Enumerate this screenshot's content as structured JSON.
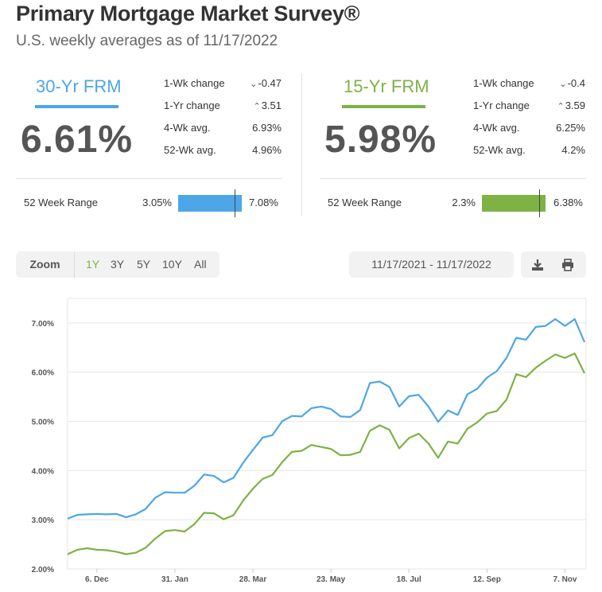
{
  "header": {
    "title": "Primary Mortgage Market Survey®",
    "subtitle": "U.S. weekly averages as of 11/17/2022"
  },
  "frm30": {
    "label": "30-Yr FRM",
    "color": "#4da6e8",
    "rate": "6.61%",
    "stats": [
      {
        "label": "1-Wk change",
        "arrow": "down",
        "value": "-0.47"
      },
      {
        "label": "1-Yr change",
        "arrow": "up",
        "value": "3.51"
      },
      {
        "label": "4-Wk avg.",
        "arrow": "",
        "value": "6.93%"
      },
      {
        "label": "52-Wk avg.",
        "arrow": "",
        "value": "4.96%"
      }
    ],
    "range_label": "52 Week Range",
    "range_low": "3.05%",
    "range_high": "7.08%",
    "range_low_num": 3.05,
    "range_high_num": 7.08,
    "current_num": 6.61
  },
  "frm15": {
    "label": "15-Yr FRM",
    "color": "#7eb244",
    "rate": "5.98%",
    "stats": [
      {
        "label": "1-Wk change",
        "arrow": "down",
        "value": "-0.4"
      },
      {
        "label": "1-Yr change",
        "arrow": "up",
        "value": "3.59"
      },
      {
        "label": "4-Wk avg.",
        "arrow": "",
        "value": "6.25%"
      },
      {
        "label": "52-Wk avg.",
        "arrow": "",
        "value": "4.2%"
      }
    ],
    "range_label": "52 Week Range",
    "range_low": "2.3%",
    "range_high": "6.38%",
    "range_low_num": 2.3,
    "range_high_num": 6.38,
    "current_num": 5.98
  },
  "zoom": {
    "label": "Zoom",
    "options": [
      "1Y",
      "3Y",
      "5Y",
      "10Y",
      "All"
    ],
    "active": "1Y"
  },
  "date_range": "11/17/2021 - 11/17/2022",
  "tools": {
    "download": "download-icon",
    "print": "print-icon"
  },
  "chart_data": {
    "type": "line",
    "title": "",
    "xlabel": "",
    "ylabel": "",
    "ylim": [
      2.0,
      7.5
    ],
    "yticks": [
      "2.00%",
      "3.00%",
      "4.00%",
      "5.00%",
      "6.00%",
      "7.00%"
    ],
    "ytick_values": [
      2,
      3,
      4,
      5,
      6,
      7
    ],
    "xticks": [
      "6. Dec",
      "31. Jan",
      "28. Mar",
      "23. May",
      "18. Jul",
      "12. Sep",
      "7. Nov"
    ],
    "xtick_week_index": [
      3,
      11,
      19,
      27,
      35,
      43,
      51
    ],
    "series": [
      {
        "name": "30-Yr FRM",
        "color": "#4da6e8",
        "values": [
          3.02,
          3.1,
          3.11,
          3.12,
          3.11,
          3.12,
          3.05,
          3.11,
          3.22,
          3.45,
          3.56,
          3.55,
          3.55,
          3.69,
          3.92,
          3.89,
          3.76,
          3.85,
          4.16,
          4.42,
          4.67,
          4.72,
          5.0,
          5.11,
          5.1,
          5.27,
          5.3,
          5.25,
          5.1,
          5.09,
          5.23,
          5.78,
          5.81,
          5.7,
          5.3,
          5.51,
          5.54,
          5.3,
          4.99,
          5.22,
          5.13,
          5.55,
          5.66,
          5.89,
          6.02,
          6.29,
          6.7,
          6.66,
          6.92,
          6.94,
          7.08,
          6.94,
          7.08,
          6.61
        ]
      },
      {
        "name": "15-Yr FRM",
        "color": "#7eb244",
        "values": [
          2.3,
          2.39,
          2.42,
          2.39,
          2.38,
          2.35,
          2.3,
          2.33,
          2.43,
          2.62,
          2.77,
          2.79,
          2.76,
          2.91,
          3.14,
          3.13,
          3.01,
          3.09,
          3.39,
          3.63,
          3.83,
          3.91,
          4.17,
          4.38,
          4.4,
          4.52,
          4.48,
          4.44,
          4.31,
          4.32,
          4.38,
          4.81,
          4.92,
          4.83,
          4.45,
          4.66,
          4.75,
          4.55,
          4.26,
          4.59,
          4.55,
          4.85,
          4.98,
          5.16,
          5.21,
          5.44,
          5.96,
          5.9,
          6.09,
          6.23,
          6.36,
          6.29,
          6.38,
          5.98
        ]
      }
    ]
  }
}
